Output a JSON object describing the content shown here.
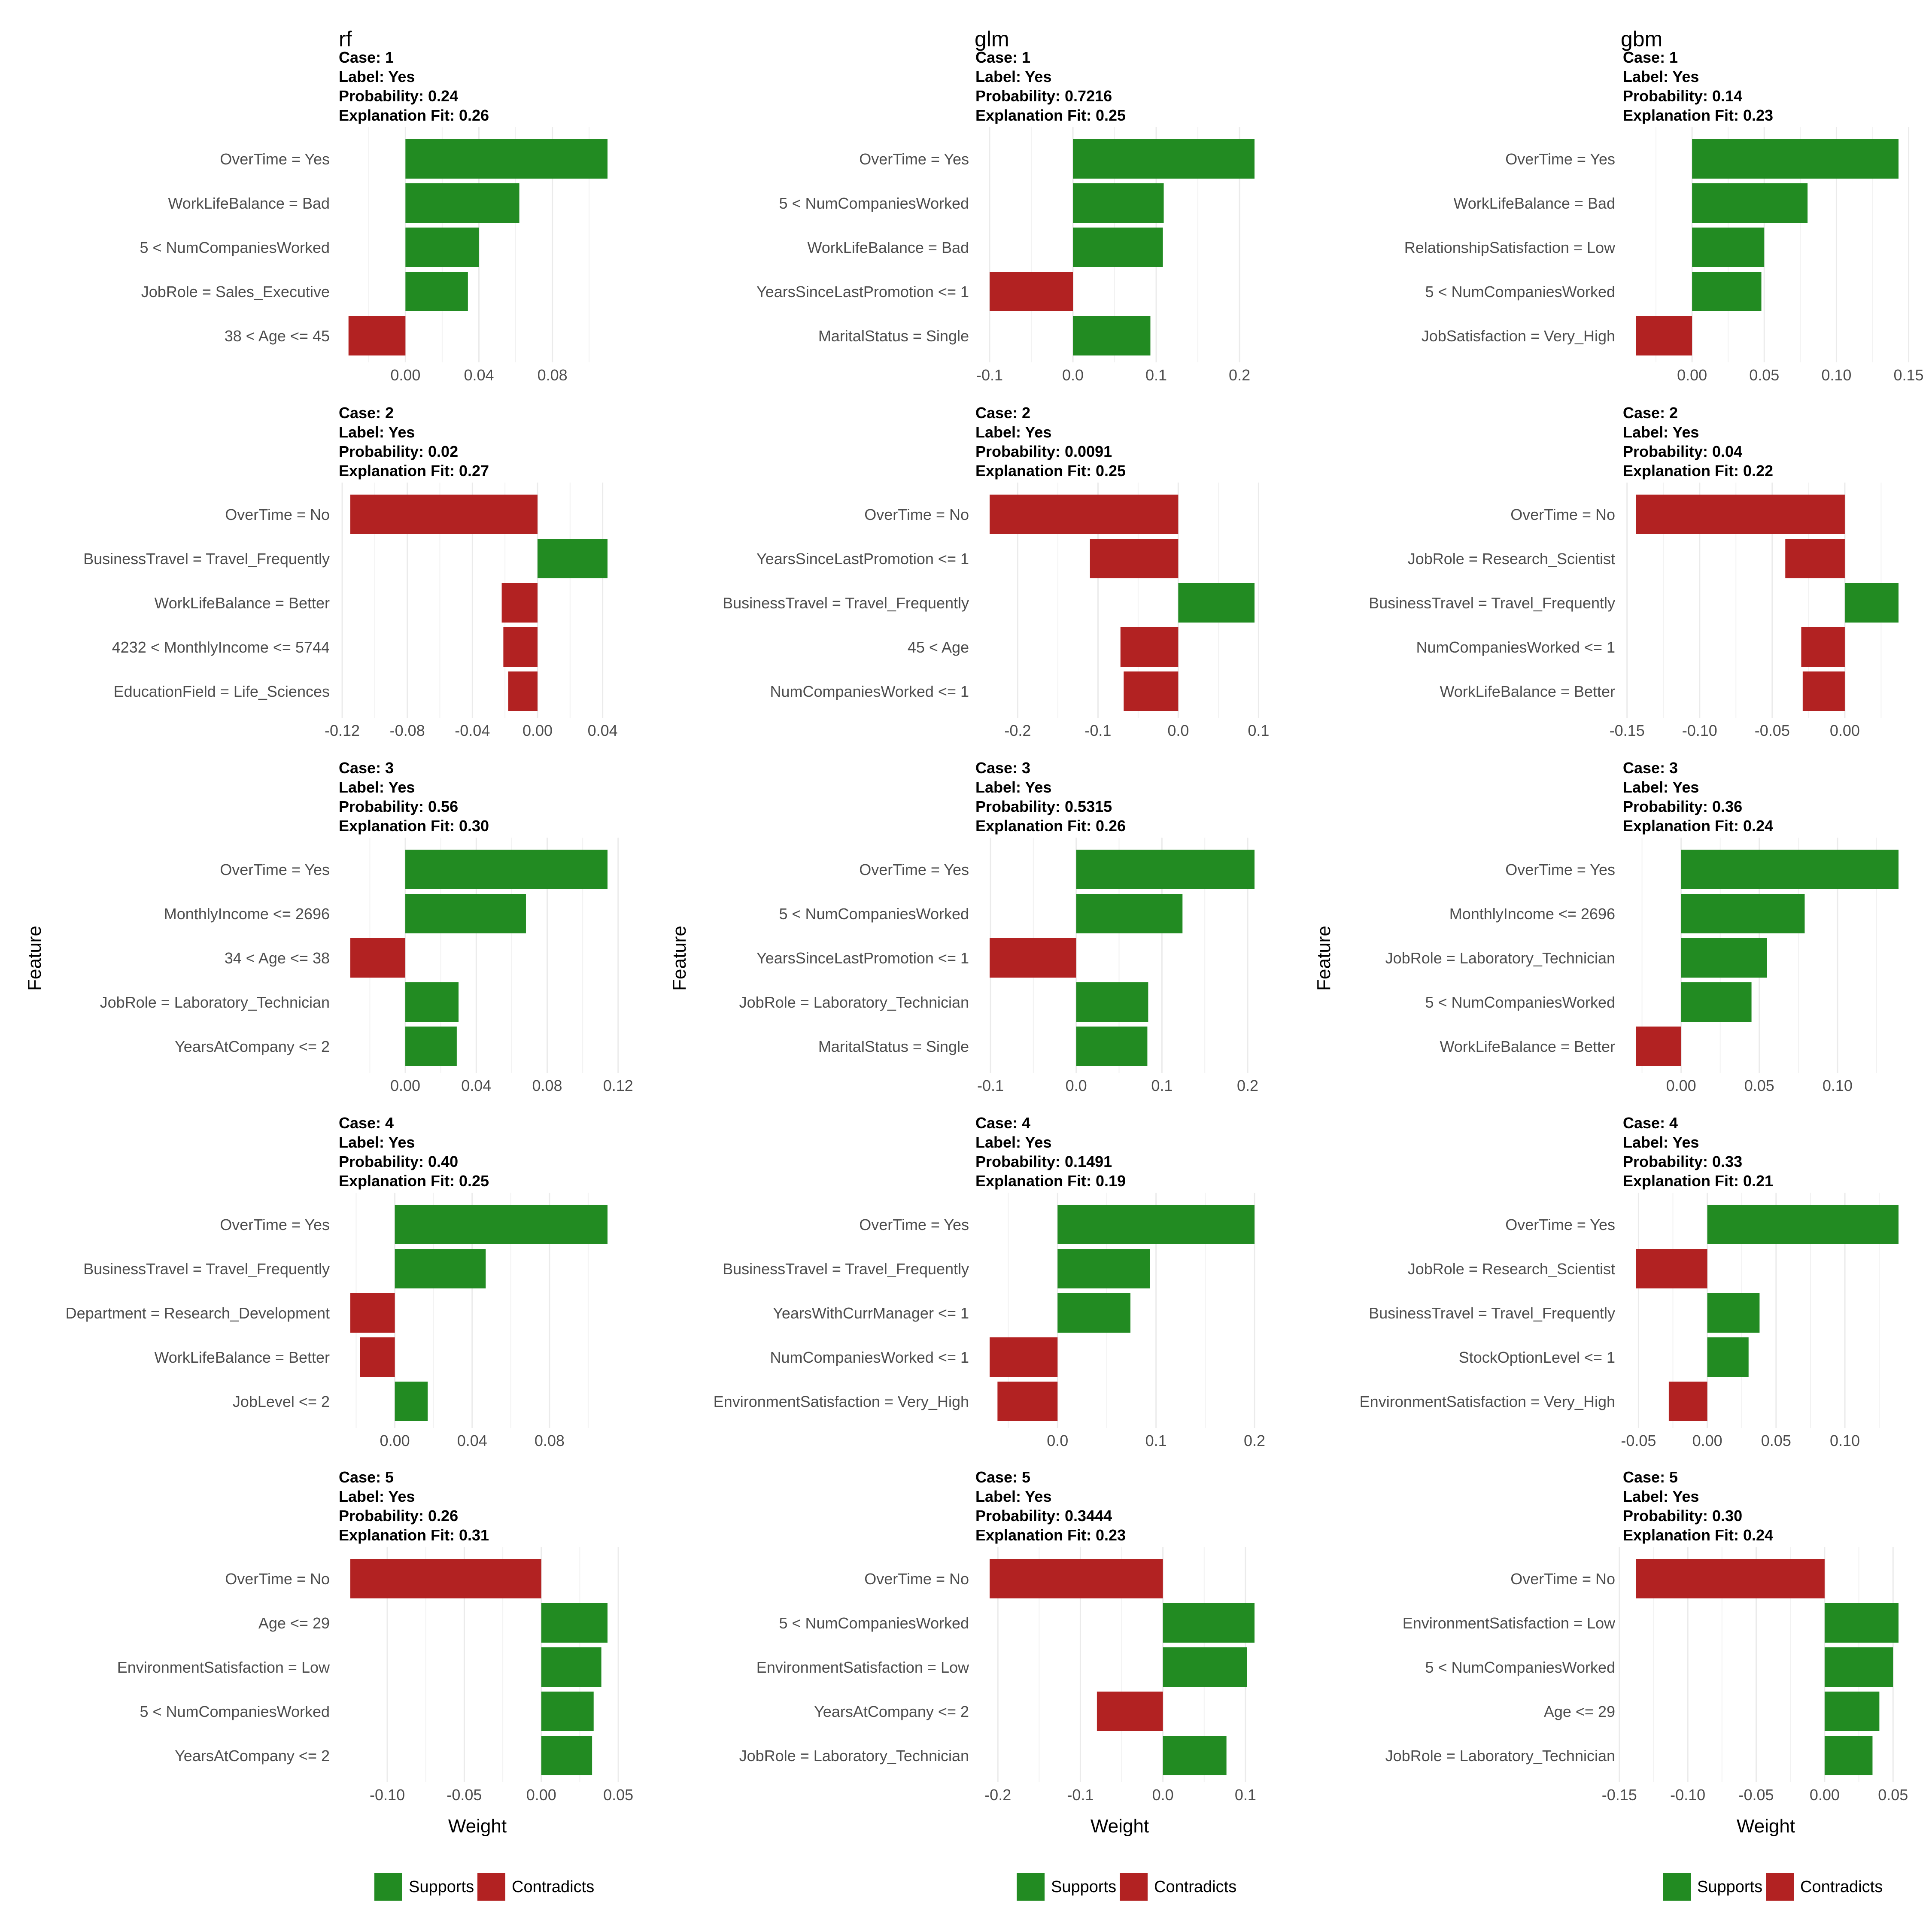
{
  "colors": {
    "supports": "#228B22",
    "contradicts": "#B22222",
    "grid": "#EBEBEB",
    "text": "#4D4D4D"
  },
  "legend": {
    "supports": "Supports",
    "contradicts": "Contradicts"
  },
  "axis": {
    "y_title": "Feature",
    "x_title": "Weight"
  },
  "chart_data": [
    {
      "model": "rf",
      "cases": [
        {
          "type": "bar",
          "case": "Case: 1",
          "label": "Label: Yes",
          "probability": "Probability: 0.24",
          "fit": "Explanation Fit: 0.26",
          "xlim": [
            -0.03,
            0.11
          ],
          "ticks": [
            0,
            0.04,
            0.08
          ],
          "tick_labels": [
            "0.00",
            "0.04",
            "0.08"
          ],
          "features": [
            "OverTime = Yes",
            "WorkLifeBalance = Bad",
            "5 < NumCompaniesWorked",
            "JobRole = Sales_Executive",
            "38 < Age <= 45"
          ],
          "values": [
            0.11,
            0.062,
            0.04,
            0.034,
            -0.031
          ]
        },
        {
          "type": "bar",
          "case": "Case: 2",
          "label": "Label: Yes",
          "probability": "Probability: 0.02",
          "fit": "Explanation Fit: 0.27",
          "xlim": [
            -0.115,
            0.043
          ],
          "ticks": [
            -0.12,
            -0.08,
            -0.04,
            0,
            0.04
          ],
          "tick_labels": [
            "-0.12",
            "-0.08",
            "-0.04",
            "0.00",
            "0.04"
          ],
          "features": [
            "OverTime = No",
            "BusinessTravel = Travel_Frequently",
            "WorkLifeBalance = Better",
            "4232 < MonthlyIncome <= 5744",
            "EducationField = Life_Sciences"
          ],
          "values": [
            -0.115,
            0.043,
            -0.022,
            -0.021,
            -0.018
          ]
        },
        {
          "type": "bar",
          "case": "Case: 3",
          "label": "Label: Yes",
          "probability": "Probability: 0.56",
          "fit": "Explanation Fit: 0.30",
          "xlim": [
            -0.031,
            0.114
          ],
          "ticks": [
            0,
            0.04,
            0.08,
            0.12
          ],
          "tick_labels": [
            "0.00",
            "0.04",
            "0.08",
            "0.12"
          ],
          "features": [
            "OverTime = Yes",
            "MonthlyIncome <= 2696",
            "34 < Age <= 38",
            "JobRole = Laboratory_Technician",
            "YearsAtCompany <= 2"
          ],
          "values": [
            0.114,
            0.068,
            -0.031,
            0.03,
            0.029
          ]
        },
        {
          "type": "bar",
          "case": "Case: 4",
          "label": "Label: Yes",
          "probability": "Probability: 0.40",
          "fit": "Explanation Fit: 0.25",
          "xlim": [
            -0.023,
            0.11
          ],
          "ticks": [
            0,
            0.04,
            0.08
          ],
          "tick_labels": [
            "0.00",
            "0.04",
            "0.08"
          ],
          "features": [
            "OverTime = Yes",
            "BusinessTravel = Travel_Frequently",
            "Department = Research_Development",
            "WorkLifeBalance = Better",
            "JobLevel <= 2"
          ],
          "values": [
            0.11,
            0.047,
            -0.023,
            -0.018,
            0.017
          ]
        },
        {
          "type": "bar",
          "case": "Case: 5",
          "label": "Label: Yes",
          "probability": "Probability: 0.26",
          "fit": "Explanation Fit: 0.31",
          "xlim": [
            -0.124,
            0.043
          ],
          "ticks": [
            -0.1,
            -0.05,
            0,
            0.05
          ],
          "tick_labels": [
            "-0.10",
            "-0.05",
            "0.00",
            "0.05"
          ],
          "features": [
            "OverTime = No",
            "Age <= 29",
            "EnvironmentSatisfaction = Low",
            "5 < NumCompaniesWorked",
            "YearsAtCompany <= 2"
          ],
          "values": [
            -0.124,
            0.043,
            0.039,
            0.034,
            0.033
          ]
        }
      ]
    },
    {
      "model": "glm",
      "cases": [
        {
          "type": "bar",
          "case": "Case: 1",
          "label": "Label: Yes",
          "probability": "Probability: 0.7216",
          "fit": "Explanation Fit: 0.25",
          "xlim": [
            -0.1,
            0.218
          ],
          "ticks": [
            -0.1,
            0,
            0.1,
            0.2
          ],
          "tick_labels": [
            "-0.1",
            "0.0",
            "0.1",
            "0.2"
          ],
          "features": [
            "OverTime = Yes",
            "5 < NumCompaniesWorked",
            "WorkLifeBalance = Bad",
            "YearsSinceLastPromotion <= 1",
            "MaritalStatus = Single"
          ],
          "values": [
            0.218,
            0.109,
            0.108,
            -0.1,
            0.093
          ]
        },
        {
          "type": "bar",
          "case": "Case: 2",
          "label": "Label: Yes",
          "probability": "Probability: 0.0091",
          "fit": "Explanation Fit: 0.25",
          "xlim": [
            -0.235,
            0.095
          ],
          "ticks": [
            -0.2,
            -0.1,
            0,
            0.1
          ],
          "tick_labels": [
            "-0.2",
            "-0.1",
            "0.0",
            "0.1"
          ],
          "features": [
            "OverTime = No",
            "YearsSinceLastPromotion <= 1",
            "BusinessTravel = Travel_Frequently",
            "45 < Age",
            "NumCompaniesWorked <= 1"
          ],
          "values": [
            -0.235,
            -0.11,
            0.095,
            -0.072,
            -0.068
          ]
        },
        {
          "type": "bar",
          "case": "Case: 3",
          "label": "Label: Yes",
          "probability": "Probability: 0.5315",
          "fit": "Explanation Fit: 0.26",
          "xlim": [
            -0.101,
            0.208
          ],
          "ticks": [
            -0.1,
            0,
            0.1,
            0.2
          ],
          "tick_labels": [
            "-0.1",
            "0.0",
            "0.1",
            "0.2"
          ],
          "features": [
            "OverTime = Yes",
            "5 < NumCompaniesWorked",
            "YearsSinceLastPromotion <= 1",
            "JobRole = Laboratory_Technician",
            "MaritalStatus = Single"
          ],
          "values": [
            0.208,
            0.124,
            -0.101,
            0.084,
            0.083
          ]
        },
        {
          "type": "bar",
          "case": "Case: 4",
          "label": "Label: Yes",
          "probability": "Probability: 0.1491",
          "fit": "Explanation Fit: 0.19",
          "xlim": [
            -0.069,
            0.2
          ],
          "ticks": [
            0,
            0.1,
            0.2
          ],
          "tick_labels": [
            "0.0",
            "0.1",
            "0.2"
          ],
          "features": [
            "OverTime = Yes",
            "BusinessTravel = Travel_Frequently",
            "YearsWithCurrManager <= 1",
            "NumCompaniesWorked <= 1",
            "EnvironmentSatisfaction = Very_High"
          ],
          "values": [
            0.2,
            0.094,
            0.074,
            -0.069,
            -0.061
          ]
        },
        {
          "type": "bar",
          "case": "Case: 5",
          "label": "Label: Yes",
          "probability": "Probability: 0.3444",
          "fit": "Explanation Fit: 0.23",
          "xlim": [
            -0.21,
            0.111
          ],
          "ticks": [
            -0.2,
            -0.1,
            0,
            0.1
          ],
          "tick_labels": [
            "-0.2",
            "-0.1",
            "0.0",
            "0.1"
          ],
          "features": [
            "OverTime = No",
            "5 < NumCompaniesWorked",
            "EnvironmentSatisfaction = Low",
            "YearsAtCompany <= 2",
            "JobRole = Laboratory_Technician"
          ],
          "values": [
            -0.21,
            0.111,
            0.102,
            -0.08,
            0.077
          ]
        }
      ]
    },
    {
      "model": "gbm",
      "cases": [
        {
          "type": "bar",
          "case": "Case: 1",
          "label": "Label: Yes",
          "probability": "Probability: 0.14",
          "fit": "Explanation Fit: 0.23",
          "xlim": [
            -0.039,
            0.143
          ],
          "ticks": [
            0,
            0.05,
            0.1,
            0.15
          ],
          "tick_labels": [
            "0.00",
            "0.05",
            "0.10",
            "0.15"
          ],
          "features": [
            "OverTime = Yes",
            "WorkLifeBalance = Bad",
            "RelationshipSatisfaction = Low",
            "5 < NumCompaniesWorked",
            "JobSatisfaction = Very_High"
          ],
          "values": [
            0.143,
            0.08,
            0.05,
            0.048,
            -0.039
          ]
        },
        {
          "type": "bar",
          "case": "Case: 2",
          "label": "Label: Yes",
          "probability": "Probability: 0.04",
          "fit": "Explanation Fit: 0.22",
          "xlim": [
            -0.144,
            0.037
          ],
          "ticks": [
            -0.15,
            -0.1,
            -0.05,
            0
          ],
          "tick_labels": [
            "-0.15",
            "-0.10",
            "-0.05",
            "0.00"
          ],
          "features": [
            "OverTime = No",
            "JobRole = Research_Scientist",
            "BusinessTravel = Travel_Frequently",
            "NumCompaniesWorked <= 1",
            "WorkLifeBalance = Better"
          ],
          "values": [
            -0.144,
            -0.041,
            0.037,
            -0.03,
            -0.029
          ]
        },
        {
          "type": "bar",
          "case": "Case: 3",
          "label": "Label: Yes",
          "probability": "Probability: 0.36",
          "fit": "Explanation Fit: 0.24",
          "xlim": [
            -0.029,
            0.139
          ],
          "ticks": [
            0,
            0.05,
            0.1
          ],
          "tick_labels": [
            "0.00",
            "0.05",
            "0.10"
          ],
          "features": [
            "OverTime = Yes",
            "MonthlyIncome <= 2696",
            "JobRole = Laboratory_Technician",
            "5 < NumCompaniesWorked",
            "WorkLifeBalance = Better"
          ],
          "values": [
            0.139,
            0.079,
            0.055,
            0.045,
            -0.029
          ]
        },
        {
          "type": "bar",
          "case": "Case: 4",
          "label": "Label: Yes",
          "probability": "Probability: 0.33",
          "fit": "Explanation Fit: 0.21",
          "xlim": [
            -0.052,
            0.139
          ],
          "ticks": [
            -0.05,
            0,
            0.05,
            0.1
          ],
          "tick_labels": [
            "-0.05",
            "0.00",
            "0.05",
            "0.10"
          ],
          "features": [
            "OverTime = Yes",
            "JobRole = Research_Scientist",
            "BusinessTravel = Travel_Frequently",
            "StockOptionLevel <= 1",
            "EnvironmentSatisfaction = Very_High"
          ],
          "values": [
            0.139,
            -0.052,
            0.038,
            0.03,
            -0.028
          ]
        },
        {
          "type": "bar",
          "case": "Case: 5",
          "label": "Label: Yes",
          "probability": "Probability: 0.30",
          "fit": "Explanation Fit: 0.24",
          "xlim": [
            -0.138,
            0.054
          ],
          "ticks": [
            -0.15,
            -0.1,
            -0.05,
            0,
            0.05
          ],
          "tick_labels": [
            "-0.15",
            "-0.10",
            "-0.05",
            "0.00",
            "0.05"
          ],
          "features": [
            "OverTime = No",
            "EnvironmentSatisfaction = Low",
            "5 < NumCompaniesWorked",
            "Age <= 29",
            "JobRole = Laboratory_Technician"
          ],
          "values": [
            -0.138,
            0.054,
            0.05,
            0.04,
            0.035
          ]
        }
      ]
    }
  ]
}
